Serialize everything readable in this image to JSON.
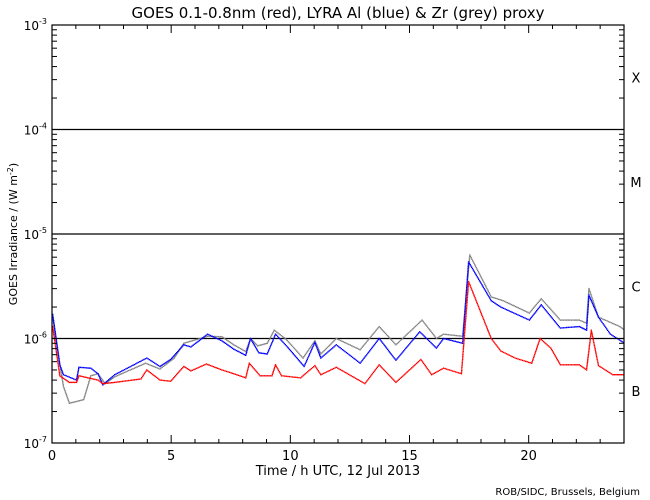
{
  "chart_data": {
    "type": "scatter",
    "title": "GOES 0.1-0.8nm (red), LYRA Al (blue) & Zr (grey) proxy",
    "xlabel": "Time / h UTC, 12 Jul 2013",
    "ylabel": "GOES Irradiance / (W m",
    "ylabel_sup": "-2",
    "ylabel_end": ")",
    "credit": "ROB/SIDC, Brussels, Belgium",
    "xlim": [
      0,
      24
    ],
    "ylim": [
      1e-07,
      0.001
    ],
    "yscale": "log",
    "x_ticks": [
      0,
      5,
      10,
      15,
      20
    ],
    "x_tick_labels": [
      "0",
      "5",
      "10",
      "15",
      "20"
    ],
    "y_ticks": [
      -7,
      -6,
      -5,
      -4,
      -3
    ],
    "y_tick_labels": [
      "10",
      "10",
      "10",
      "10",
      "10"
    ],
    "y_tick_exponents": [
      "-7",
      "-6",
      "-5",
      "-4",
      "-3"
    ],
    "class_thresholds": [
      1e-06,
      1e-05,
      0.0001
    ],
    "class_labels": [
      {
        "label": "B",
        "value": 3.16e-07
      },
      {
        "label": "C",
        "value": 3.16e-06
      },
      {
        "label": "M",
        "value": 3.16e-05
      },
      {
        "label": "X",
        "value": 0.000316
      }
    ],
    "series": [
      {
        "name": "LYRA Zr proxy",
        "color": "#808080",
        "x": [
          0,
          0.3,
          0.45,
          0.7,
          1.3,
          1.6,
          1.9,
          2.2,
          2.6,
          3.9,
          4.5,
          5.1,
          5.5,
          6.5,
          7.1,
          7.6,
          8.1,
          8.3,
          8.6,
          9.0,
          9.3,
          9.8,
          10.5,
          11.0,
          11.25,
          11.9,
          12.9,
          13.7,
          14.4,
          15.5,
          16.1,
          16.4,
          17.2,
          17.5,
          18.4,
          18.9,
          20.0,
          20.5,
          21.3,
          22.1,
          22.4,
          22.5,
          22.9,
          23.8,
          24.0
        ],
        "y": [
          1.6e-06,
          5.6e-07,
          3.5e-07,
          2.4e-07,
          2.6e-07,
          4.4e-07,
          4.6e-07,
          3.7e-07,
          4.3e-07,
          5.8e-07,
          5.1e-07,
          6.5e-07,
          9e-07,
          1.05e-06,
          1.04e-06,
          8.7e-07,
          7.5e-07,
          1e-06,
          8.5e-07,
          9e-07,
          1.2e-06,
          9.8e-07,
          6.5e-07,
          9.5e-07,
          7.1e-07,
          1e-06,
          7.8e-07,
          1.3e-06,
          8.7e-07,
          1.5e-06,
          1e-06,
          1.1e-06,
          1.05e-06,
          6.3e-06,
          2.5e-06,
          2.3e-06,
          1.75e-06,
          2.4e-06,
          1.5e-06,
          1.5e-06,
          1.4e-06,
          3e-06,
          1.6e-06,
          1.3e-06,
          1.2e-06
        ]
      },
      {
        "name": "LYRA Al proxy",
        "color": "#0000ff",
        "x": [
          0,
          0.3,
          0.45,
          1.0,
          1.1,
          1.6,
          1.9,
          2.1,
          2.6,
          3.95,
          4.5,
          4.95,
          5.5,
          5.8,
          6.5,
          7.1,
          7.6,
          8.1,
          8.3,
          8.65,
          9.0,
          9.35,
          9.85,
          10.55,
          11.0,
          11.25,
          11.9,
          12.9,
          13.7,
          14.4,
          15.4,
          16.1,
          16.4,
          17.2,
          17.45,
          18.4,
          18.8,
          20.0,
          20.5,
          21.3,
          22.1,
          22.4,
          22.5,
          22.9,
          23.4,
          24.0
        ],
        "y": [
          1.7e-06,
          5.6e-07,
          4.5e-07,
          4e-07,
          5.3e-07,
          5.2e-07,
          4.6e-07,
          3.6e-07,
          4.5e-07,
          6.5e-07,
          5.4e-07,
          6.3e-07,
          8.7e-07,
          8.3e-07,
          1.1e-06,
          9.5e-07,
          7.9e-07,
          6.9e-07,
          1e-06,
          7.3e-07,
          7.1e-07,
          1.1e-06,
          8.3e-07,
          5.4e-07,
          9.2e-07,
          6.5e-07,
          8.7e-07,
          5.8e-07,
          1e-06,
          6.2e-07,
          1.16e-06,
          8.1e-07,
          1e-06,
          9e-07,
          5.4e-06,
          2.3e-06,
          2e-06,
          1.5e-06,
          2.1e-06,
          1.26e-06,
          1.3e-06,
          1.2e-06,
          2.6e-06,
          1.6e-06,
          1.1e-06,
          9e-07
        ]
      },
      {
        "name": "GOES 0.1-0.8nm",
        "color": "#ff0000",
        "x": [
          0,
          0.3,
          0.7,
          1.0,
          1.1,
          1.9,
          2.1,
          2.6,
          3.7,
          3.95,
          4.5,
          4.95,
          5.5,
          5.8,
          6.45,
          7.1,
          7.6,
          8.1,
          8.25,
          8.7,
          9.2,
          9.35,
          9.6,
          10.4,
          11.0,
          11.25,
          11.9,
          13.1,
          13.7,
          14.4,
          15.45,
          15.9,
          16.4,
          17.15,
          17.45,
          18.4,
          18.8,
          19.4,
          20.1,
          20.45,
          20.9,
          21.3,
          22.1,
          22.4,
          22.6,
          22.9,
          23.5,
          24.0
        ],
        "y": [
          1.3e-06,
          4.4e-07,
          3.8e-07,
          3.8e-07,
          4.4e-07,
          4e-07,
          3.7e-07,
          3.8e-07,
          4.1e-07,
          5e-07,
          4e-07,
          3.9e-07,
          5.4e-07,
          4.9e-07,
          5.7e-07,
          5e-07,
          4.6e-07,
          4.2e-07,
          5.8e-07,
          4.4e-07,
          4.4e-07,
          5.6e-07,
          4.4e-07,
          4.2e-07,
          5.5e-07,
          4.5e-07,
          5.3e-07,
          3.7e-07,
          5.6e-07,
          3.8e-07,
          6.3e-07,
          4.5e-07,
          5.2e-07,
          4.6e-07,
          3.5e-06,
          1e-06,
          7.6e-07,
          6.5e-07,
          5.8e-07,
          1e-06,
          8.1e-07,
          5.6e-07,
          5.6e-07,
          5e-07,
          1.2e-06,
          5.5e-07,
          4.5e-07,
          4.5e-07
        ]
      }
    ]
  }
}
